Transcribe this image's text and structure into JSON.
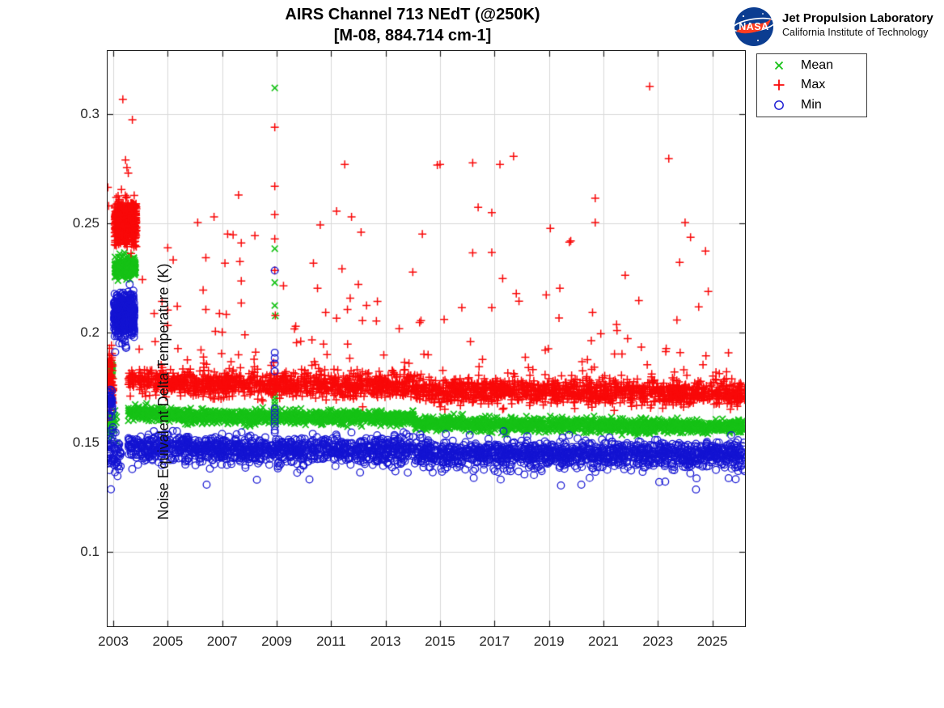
{
  "header": {
    "title": "AIRS Channel 713 NEdT (@250K)",
    "subtitle": "[M-08, 884.714 cm-1]"
  },
  "logo": {
    "meatball_text": "NASA",
    "org": "Jet Propulsion Laboratory",
    "suborg": "California Institute of Technology",
    "colors": {
      "globe": "#0b3d91",
      "swoosh": "#fc3d21",
      "letters": "#ffffff"
    }
  },
  "legend": {
    "items": [
      {
        "label": "Mean",
        "marker": "x",
        "color": "#16c216"
      },
      {
        "label": "Max",
        "marker": "+",
        "color": "#f90909"
      },
      {
        "label": "Min",
        "marker": "o",
        "color": "#1414d2"
      }
    ]
  },
  "axes": {
    "ylabel": "Noise Equivalent Delta Temperature (K)",
    "grid_color": "#d9d9d9",
    "axis_color": "#1a1a1a"
  },
  "chart_data": {
    "type": "scatter",
    "title": "AIRS Channel 713 NEdT (@250K)",
    "subtitle": "[M-08, 884.714 cm-1]",
    "xlabel": "",
    "ylabel": "Noise Equivalent Delta Temperature (K)",
    "xlim": [
      2002.79,
      2026.2
    ],
    "ylim": [
      0.066,
      0.3288
    ],
    "xticks": [
      2003,
      2005,
      2007,
      2009,
      2011,
      2013,
      2015,
      2017,
      2019,
      2021,
      2023,
      2025
    ],
    "yticks": [
      0.1,
      0.15,
      0.2,
      0.25,
      0.3
    ],
    "grid": true,
    "legend_position": "outside-top-right",
    "series": [
      {
        "name": "Mean",
        "marker": "x",
        "color": "#16c216"
      },
      {
        "name": "Max",
        "marker": "+",
        "color": "#f90909"
      },
      {
        "name": "Min",
        "marker": "o",
        "color": "#1414d2"
      }
    ],
    "bands": [
      {
        "series": "Mean",
        "x0": 2003.55,
        "x1": 2006.0,
        "v0": 0.1638,
        "v1": 0.1618,
        "hw": 0.0016,
        "n": 270
      },
      {
        "series": "Mean",
        "x0": 2006.0,
        "x1": 2014.05,
        "v0": 0.1618,
        "v1": 0.161,
        "hw": 0.0015,
        "n": 880
      },
      {
        "series": "Mean",
        "x0": 2014.05,
        "x1": 2026.2,
        "v0": 0.1586,
        "v1": 0.157,
        "hw": 0.0015,
        "n": 1330
      },
      {
        "series": "Max",
        "x0": 2003.55,
        "x1": 2006.0,
        "v0": 0.1783,
        "v1": 0.1768,
        "hw": 0.003,
        "n": 270,
        "tail": {
          "dir": 1,
          "p": 0.05,
          "base": 0.003,
          "scale": 0.008,
          "cap": 0.034
        }
      },
      {
        "series": "Max",
        "x0": 2006.0,
        "x1": 2014.05,
        "v0": 0.1768,
        "v1": 0.1757,
        "hw": 0.0028,
        "n": 880,
        "tail": {
          "dir": 1,
          "p": 0.05,
          "base": 0.003,
          "scale": 0.008,
          "cap": 0.034
        }
      },
      {
        "series": "Max",
        "x0": 2014.05,
        "x1": 2026.2,
        "v0": 0.1737,
        "v1": 0.1722,
        "hw": 0.0028,
        "n": 1330,
        "tail": {
          "dir": 1,
          "p": 0.05,
          "base": 0.003,
          "scale": 0.008,
          "cap": 0.034
        }
      },
      {
        "series": "Min",
        "x0": 2003.55,
        "x1": 2006.0,
        "v0": 0.1478,
        "v1": 0.147,
        "hw": 0.003,
        "n": 270,
        "tail": {
          "dir": -1,
          "p": 0.07,
          "base": 0.002,
          "scale": 0.0035,
          "cap": 0.011
        }
      },
      {
        "series": "Min",
        "x0": 2006.0,
        "x1": 2014.05,
        "v0": 0.147,
        "v1": 0.1466,
        "hw": 0.0028,
        "n": 880,
        "tail": {
          "dir": -1,
          "p": 0.07,
          "base": 0.002,
          "scale": 0.0035,
          "cap": 0.011
        }
      },
      {
        "series": "Min",
        "x0": 2014.05,
        "x1": 2026.2,
        "v0": 0.1452,
        "v1": 0.1443,
        "hw": 0.0028,
        "n": 1330,
        "tail": {
          "dir": -1,
          "p": 0.07,
          "base": 0.002,
          "scale": 0.0035,
          "cap": 0.011
        }
      }
    ],
    "clusters": [
      {
        "series": "Max",
        "x0": 2002.79,
        "x1": 2003.0,
        "v": 0.178,
        "hw": 0.007,
        "n": 80,
        "note": "startup column at left edge"
      },
      {
        "series": "Mean",
        "x0": 2002.79,
        "x1": 2002.98,
        "v": 0.184,
        "hw": 0.0018,
        "n": 24
      },
      {
        "series": "Mean",
        "x0": 2002.79,
        "x1": 2003.15,
        "v": 0.1592,
        "hw": 0.0038,
        "n": 34
      },
      {
        "series": "Min",
        "x0": 2002.79,
        "x1": 2002.98,
        "v": 0.1692,
        "hw": 0.003,
        "n": 40
      },
      {
        "series": "Min",
        "x0": 2002.79,
        "x1": 2003.3,
        "v": 0.1448,
        "hw": 0.0055,
        "n": 60
      },
      {
        "series": "Max",
        "x0": 2003.05,
        "x1": 2003.85,
        "v": 0.2505,
        "hw": 0.005,
        "n": 650,
        "note": "2003 high-noise period"
      },
      {
        "series": "Mean",
        "x0": 2003.05,
        "x1": 2003.82,
        "v": 0.23,
        "hw": 0.002,
        "n": 330
      },
      {
        "series": "Min",
        "x0": 2003.02,
        "x1": 2003.78,
        "v": 0.2077,
        "hw": 0.0048,
        "n": 520
      }
    ],
    "points": {
      "Max": [
        [
          2002.8,
          0.2665
        ],
        [
          2002.83,
          0.258
        ],
        [
          2003.35,
          0.3067
        ],
        [
          2003.7,
          0.2974
        ],
        [
          2003.45,
          0.279
        ],
        [
          2003.5,
          0.2755
        ],
        [
          2003.55,
          0.273
        ],
        [
          2003.3,
          0.2655
        ],
        [
          2004.07,
          0.2244
        ],
        [
          2004.5,
          0.2089
        ],
        [
          2005.0,
          0.2389
        ],
        [
          2005.0,
          0.2104
        ],
        [
          2005.2,
          0.2333
        ],
        [
          2005.35,
          0.2122
        ],
        [
          2006.1,
          0.2504
        ],
        [
          2006.3,
          0.2196
        ],
        [
          2006.4,
          0.2344
        ],
        [
          2006.4,
          0.2107
        ],
        [
          2006.7,
          0.253
        ],
        [
          2006.75,
          0.2007
        ],
        [
          2006.9,
          0.2089
        ],
        [
          2007.0,
          0.2004
        ],
        [
          2007.1,
          0.2319
        ],
        [
          2007.2,
          0.2452
        ],
        [
          2007.4,
          0.2448
        ],
        [
          2007.6,
          0.263
        ],
        [
          2007.65,
          0.2326
        ],
        [
          2007.7,
          0.2411
        ],
        [
          2007.7,
          0.2237
        ],
        [
          2007.7,
          0.2137
        ],
        [
          2008.2,
          0.2444
        ],
        [
          2008.93,
          0.294
        ],
        [
          2008.93,
          0.267
        ],
        [
          2008.93,
          0.254
        ],
        [
          2008.93,
          0.243
        ],
        [
          2008.93,
          0.2285
        ],
        [
          2008.95,
          0.208
        ],
        [
          2009.25,
          0.2215
        ],
        [
          2009.7,
          0.203
        ],
        [
          2010.35,
          0.2319
        ],
        [
          2010.5,
          0.2204
        ],
        [
          2010.6,
          0.2493
        ],
        [
          2010.8,
          0.2093
        ],
        [
          2011.2,
          0.2556
        ],
        [
          2011.2,
          0.2067
        ],
        [
          2011.4,
          0.2293
        ],
        [
          2011.5,
          0.277
        ],
        [
          2011.6,
          0.2107
        ],
        [
          2011.7,
          0.2159
        ],
        [
          2011.75,
          0.253
        ],
        [
          2012.0,
          0.2222
        ],
        [
          2012.1,
          0.246
        ],
        [
          2012.15,
          0.2056
        ],
        [
          2012.3,
          0.2126
        ],
        [
          2012.7,
          0.2144
        ],
        [
          2013.5,
          0.2019
        ],
        [
          2014.0,
          0.2278
        ],
        [
          2014.25,
          0.2048
        ],
        [
          2014.3,
          0.2056
        ],
        [
          2014.35,
          0.2452
        ],
        [
          2014.9,
          0.2767
        ],
        [
          2015.0,
          0.277
        ],
        [
          2015.8,
          0.2115
        ],
        [
          2016.2,
          0.2777
        ],
        [
          2016.2,
          0.2366
        ],
        [
          2016.4,
          0.2574
        ],
        [
          2016.9,
          0.255
        ],
        [
          2016.9,
          0.2368
        ],
        [
          2016.9,
          0.2115
        ],
        [
          2017.2,
          0.277
        ],
        [
          2017.3,
          0.2248
        ],
        [
          2017.7,
          0.2807
        ],
        [
          2017.8,
          0.218
        ],
        [
          2017.9,
          0.2145
        ],
        [
          2018.9,
          0.2174
        ],
        [
          2019.05,
          0.2478
        ],
        [
          2019.4,
          0.2204
        ],
        [
          2019.75,
          0.2415
        ],
        [
          2019.8,
          0.242
        ],
        [
          2020.6,
          0.2093
        ],
        [
          2020.7,
          0.2615
        ],
        [
          2020.7,
          0.2504
        ],
        [
          2021.5,
          0.2011
        ],
        [
          2021.8,
          0.2263
        ],
        [
          2022.3,
          0.2148
        ],
        [
          2022.7,
          0.3126
        ],
        [
          2023.4,
          0.2796
        ],
        [
          2023.7,
          0.2059
        ],
        [
          2023.8,
          0.2322
        ],
        [
          2024.0,
          0.2504
        ],
        [
          2024.2,
          0.2437
        ],
        [
          2024.5,
          0.2119
        ],
        [
          2024.75,
          0.2374
        ],
        [
          2024.85,
          0.2189
        ]
      ],
      "Mean": [
        [
          2008.93,
          0.3119
        ],
        [
          2008.93,
          0.2385
        ],
        [
          2008.93,
          0.223
        ],
        [
          2008.93,
          0.2125
        ],
        [
          2008.95,
          0.2078
        ],
        [
          2008.93,
          0.1745
        ],
        [
          2008.93,
          0.173
        ],
        [
          2008.93,
          0.1715
        ],
        [
          2008.93,
          0.17
        ],
        [
          2008.93,
          0.1685
        ],
        [
          2008.93,
          0.167
        ],
        [
          2008.93,
          0.1655
        ],
        [
          2008.93,
          0.1645
        ],
        [
          2019.05,
          0.162
        ]
      ],
      "Min": [
        [
          2008.93,
          0.2285
        ],
        [
          2008.93,
          0.191
        ],
        [
          2008.93,
          0.1885
        ],
        [
          2008.93,
          0.186
        ],
        [
          2008.93,
          0.1825
        ],
        [
          2008.93,
          0.1655
        ],
        [
          2008.93,
          0.1635
        ],
        [
          2008.93,
          0.1615
        ],
        [
          2008.93,
          0.1595
        ],
        [
          2008.93,
          0.1575
        ],
        [
          2008.93,
          0.1555
        ],
        [
          2008.93,
          0.1545
        ],
        [
          2024.4,
          0.1285
        ]
      ]
    }
  }
}
